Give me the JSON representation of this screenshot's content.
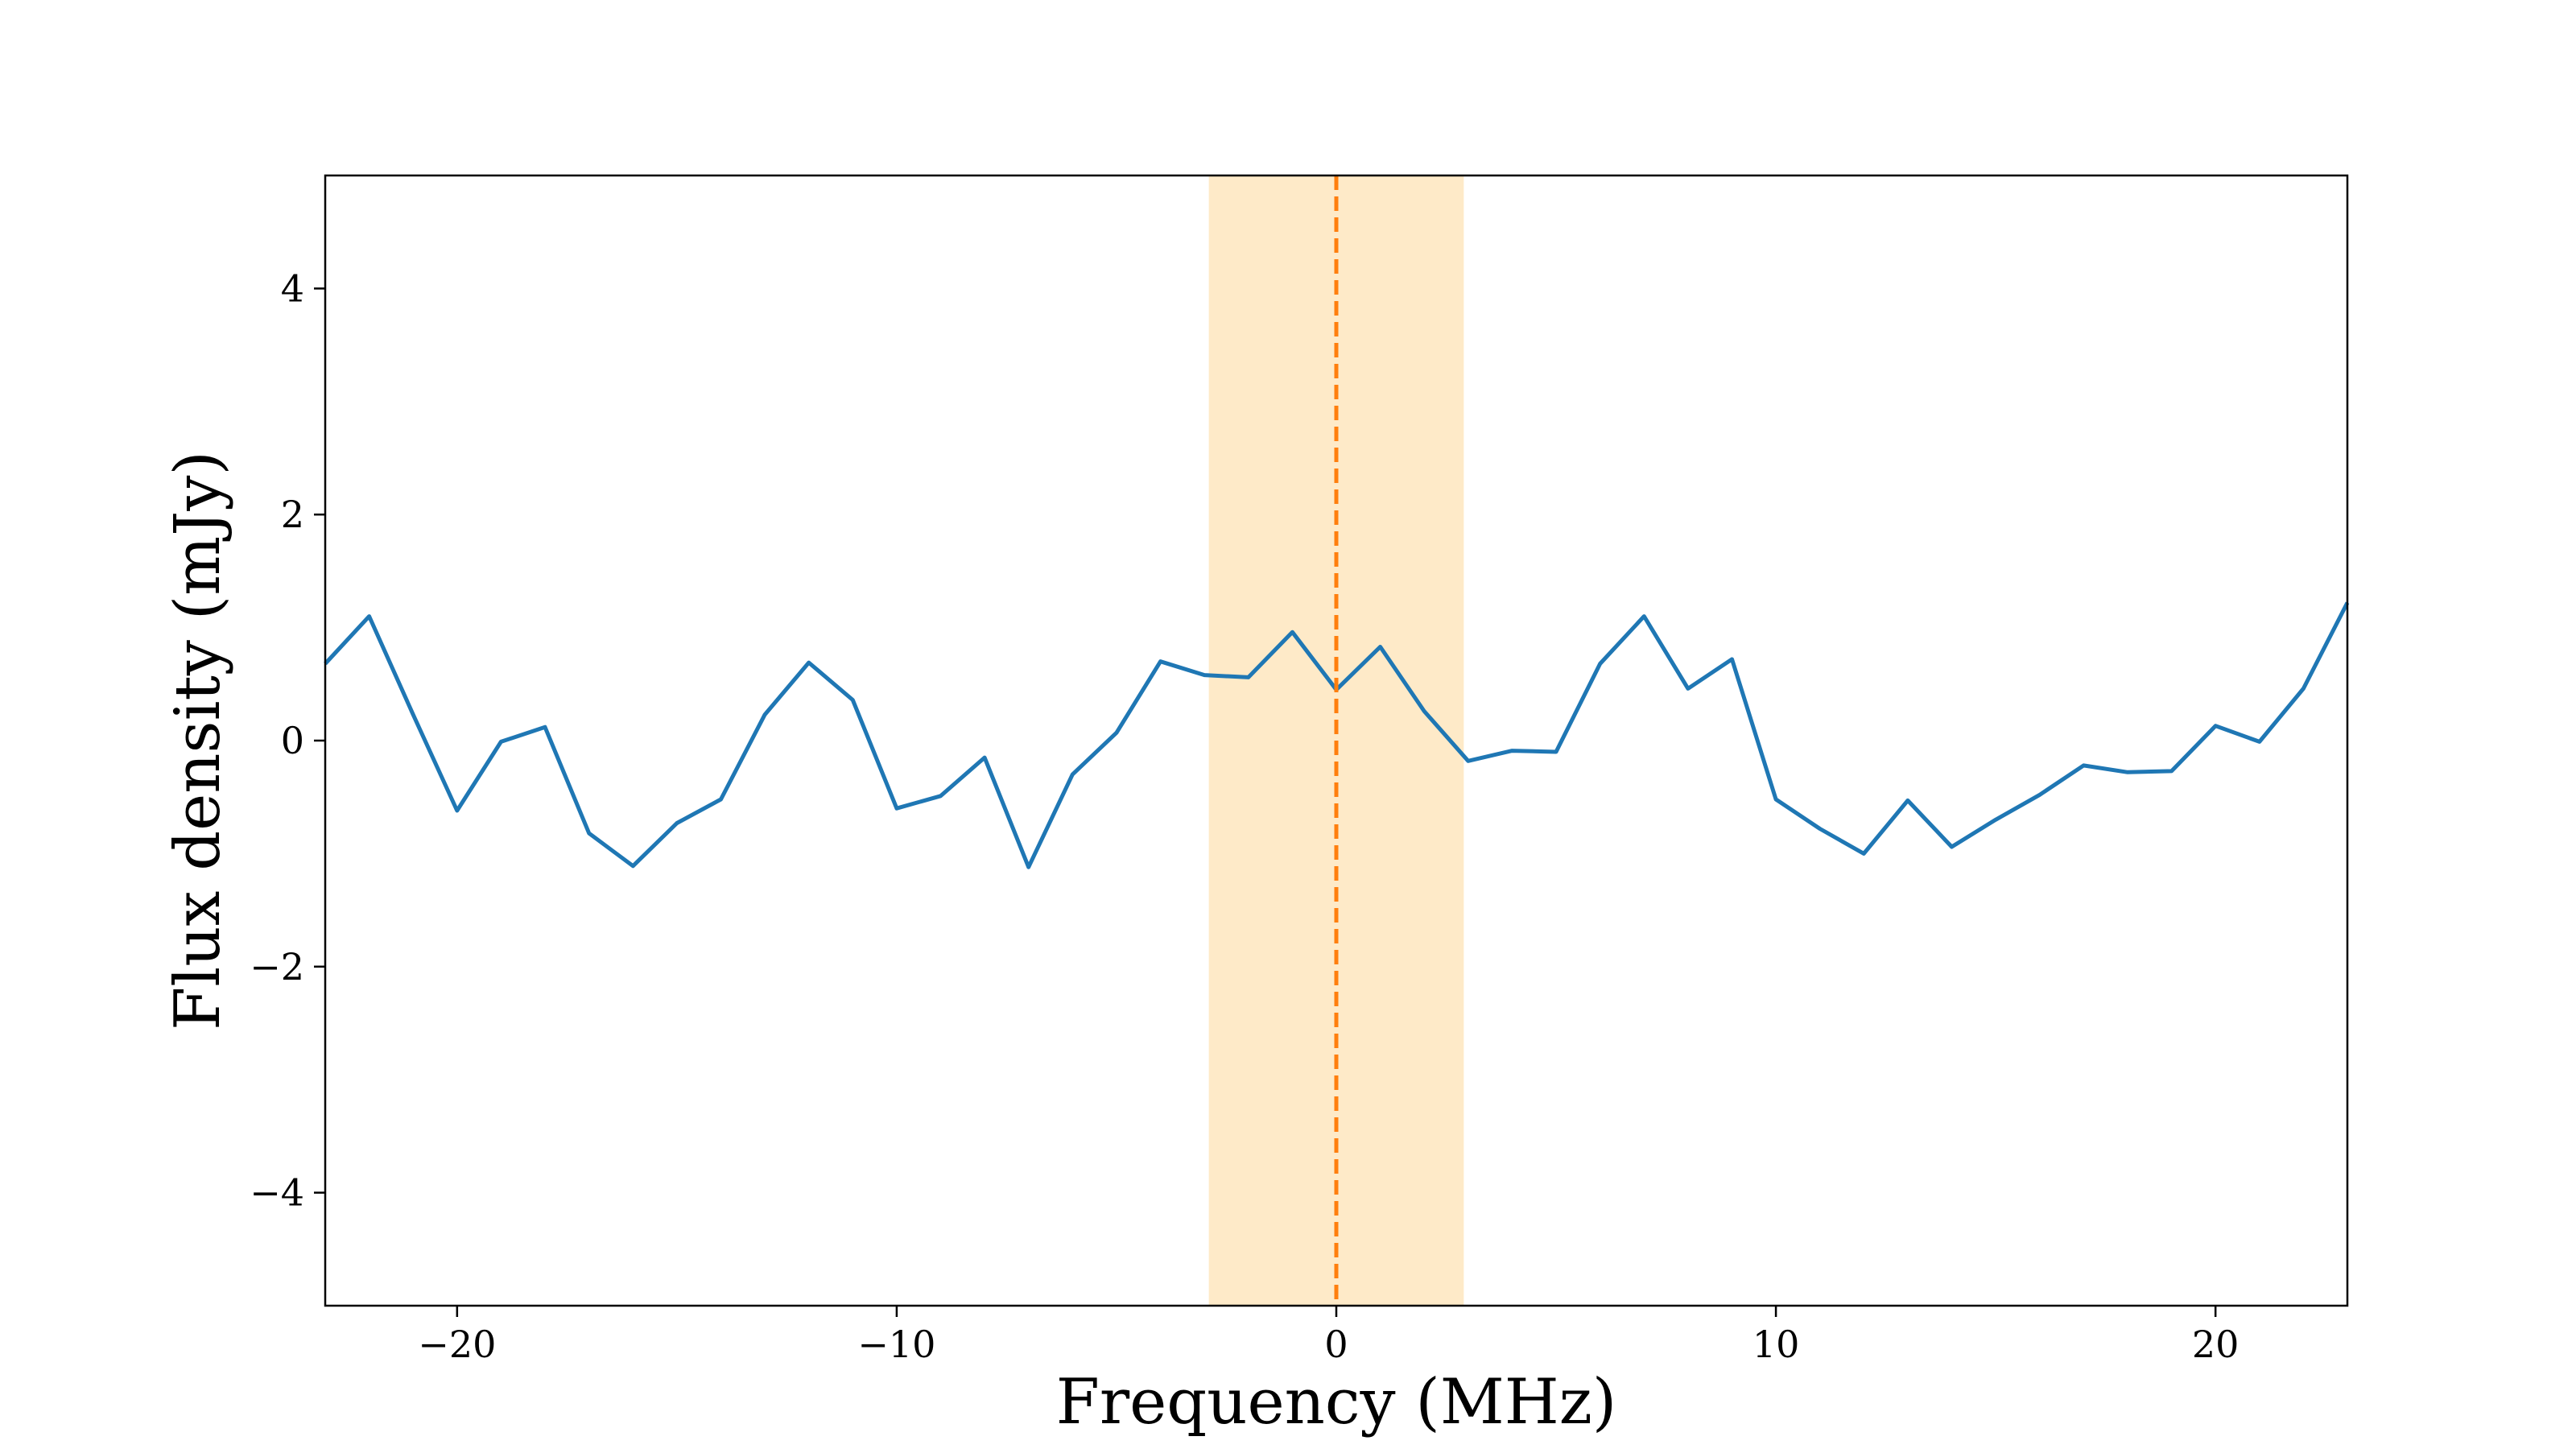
{
  "chart_data": {
    "type": "line",
    "title": "",
    "xlabel": "Frequency (MHz)",
    "ylabel": "Flux density (mJy)",
    "xlim": [
      -23,
      23
    ],
    "ylim": [
      -5,
      5
    ],
    "grid": false,
    "xticks": [
      -20,
      -10,
      0,
      10,
      20
    ],
    "yticks": [
      -4,
      -2,
      0,
      2,
      4
    ],
    "xtick_labels": [
      "−20",
      "−10",
      "0",
      "10",
      "20"
    ],
    "ytick_labels": [
      "−4",
      "−2",
      "0",
      "2",
      "4"
    ],
    "series": [
      {
        "name": "spectrum",
        "color": "#1f77b4",
        "x": [
          -23,
          -22,
          -21,
          -20,
          -19,
          -18,
          -17,
          -16,
          -15,
          -14,
          -13,
          -12,
          -11,
          -10,
          -9,
          -8,
          -7,
          -6,
          -5,
          -4,
          -3,
          -2,
          -1,
          0,
          1,
          2,
          3,
          4,
          5,
          6,
          7,
          8,
          9,
          10,
          11,
          12,
          13,
          14,
          15,
          16,
          17,
          18,
          19,
          20,
          21,
          22,
          23
        ],
        "y": [
          0.68,
          1.1,
          0.23,
          -0.62,
          -0.01,
          0.12,
          -0.82,
          -1.11,
          -0.73,
          -0.52,
          0.23,
          0.69,
          0.36,
          -0.6,
          -0.49,
          -0.15,
          -1.12,
          -0.3,
          0.07,
          0.7,
          0.58,
          0.56,
          0.96,
          0.45,
          0.83,
          0.26,
          -0.18,
          -0.09,
          -0.1,
          0.68,
          1.1,
          0.46,
          0.72,
          -0.52,
          -0.78,
          -1.0,
          -0.53,
          -0.94,
          -0.7,
          -0.48,
          -0.22,
          -0.28,
          -0.27,
          0.13,
          -0.01,
          0.46,
          1.22
        ]
      }
    ],
    "annotations": {
      "center_line": {
        "x": 0,
        "style": "dashed",
        "color": "#ff7f0e"
      },
      "highlight_band": {
        "x_start": -2.9,
        "x_end": 2.9,
        "color": "#fdd89a",
        "opacity": 0.55
      }
    }
  }
}
